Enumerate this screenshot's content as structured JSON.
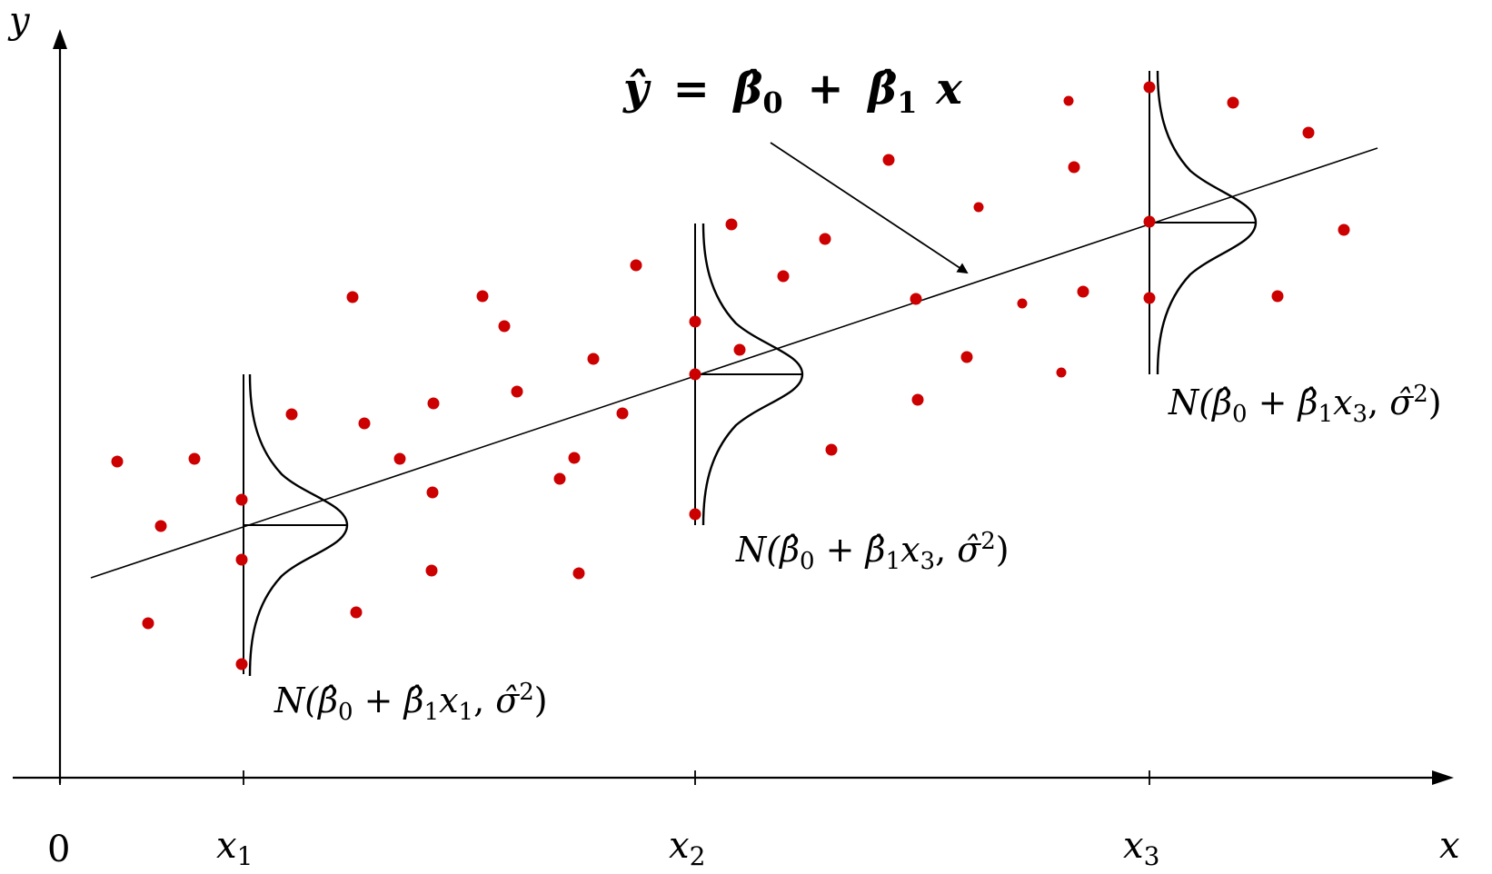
{
  "axes": {
    "x_label": "x",
    "y_label": "y",
    "origin_label": "0",
    "ticks": [
      {
        "base": "x",
        "sub": "1"
      },
      {
        "base": "x",
        "sub": "2"
      },
      {
        "base": "x",
        "sub": "3"
      }
    ]
  },
  "equation": {
    "lhs": "ŷ",
    "equals": "=",
    "b0": "β̂",
    "b0_sub": "0",
    "plus": "+",
    "b1": "β̂",
    "b1_sub": "1",
    "x": "x"
  },
  "distributions": [
    {
      "prefix": "N(",
      "b0": "β̂",
      "b0_sub": "0",
      "plus": " + ",
      "b1": "β̂",
      "b1_sub": "1",
      "x": "x",
      "x_sub": "1",
      "sep": ", ",
      "sigma": "σ̂",
      "sigma_sup": "2",
      "suffix": ")"
    },
    {
      "prefix": "N(",
      "b0": "β̂",
      "b0_sub": "0",
      "plus": " + ",
      "b1": "β̂",
      "b1_sub": "1",
      "x": "x",
      "x_sub": "3",
      "sep": ", ",
      "sigma": "σ̂",
      "sigma_sup": "2",
      "suffix": ")"
    },
    {
      "prefix": "N(",
      "b0": "β̂",
      "b0_sub": "0",
      "plus": " + ",
      "b1": "β̂",
      "b1_sub": "1",
      "x": "x",
      "x_sub": "3",
      "sep": ", ",
      "sigma": "σ̂",
      "sigma_sup": "2",
      "suffix": ")"
    }
  ],
  "colors": {
    "points": "#cc0000",
    "lines": "#000000"
  }
}
